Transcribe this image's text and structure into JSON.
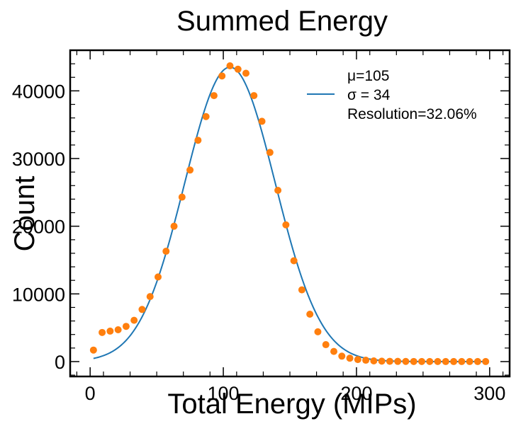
{
  "chart_data": {
    "type": "scatter",
    "title": "Summed Energy",
    "xlabel": "Total Energy (MIPs)",
    "ylabel": "Count",
    "xlim": [
      -15,
      315
    ],
    "ylim": [
      -2200,
      46000
    ],
    "xticks": [
      0,
      100,
      200,
      300
    ],
    "xtick_labels": [
      "0",
      "100",
      "200",
      "300"
    ],
    "yticks": [
      0,
      10000,
      20000,
      30000,
      40000
    ],
    "ytick_labels": [
      "0",
      "10000",
      "20000",
      "30000",
      "40000"
    ],
    "grid": false,
    "legend_position": "top-right",
    "legend": {
      "mu_label": "μ=105",
      "sigma_label": "σ = 34",
      "resolution_label": "Resolution=32.06%"
    },
    "fit": {
      "type": "gaussian",
      "mean": 105,
      "sigma": 34,
      "amplitude": 43500,
      "color": "#1f77b4"
    },
    "points_color": "#ff7f0e",
    "x": [
      2.5,
      9,
      15,
      21,
      27,
      33,
      39,
      45,
      51,
      57,
      63,
      69,
      75,
      81,
      87,
      93,
      99,
      105,
      111,
      117,
      123,
      129,
      135,
      141,
      147,
      153,
      159,
      165,
      171,
      177,
      183,
      189,
      195,
      201,
      207,
      213,
      219,
      225,
      231,
      237,
      243,
      249,
      255,
      261,
      267,
      273,
      279,
      285,
      291,
      297
    ],
    "y": [
      1700,
      4300,
      4500,
      4700,
      5200,
      6100,
      7700,
      9600,
      12500,
      16300,
      20000,
      24300,
      28300,
      32700,
      36200,
      39300,
      42200,
      43700,
      43200,
      42600,
      39300,
      35500,
      30900,
      25300,
      20200,
      14900,
      10600,
      7000,
      4400,
      2500,
      1500,
      800,
      500,
      300,
      200,
      100,
      60,
      40,
      30,
      20,
      15,
      10,
      10,
      10,
      5,
      5,
      5,
      5,
      5,
      5
    ]
  }
}
